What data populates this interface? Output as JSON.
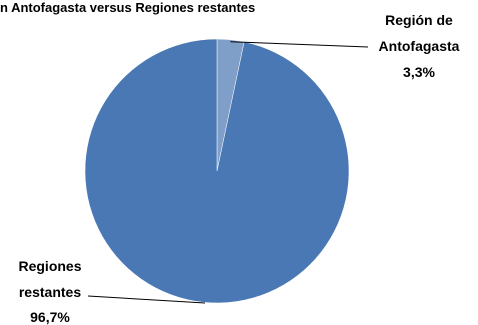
{
  "chart_data": {
    "type": "pie",
    "title": "n Antofagasta versus Regiones restantes",
    "slices": [
      {
        "label_lines": [
          "Región de",
          "Antofagasta"
        ],
        "value_label": "3,3%",
        "value": 3.3,
        "color": "#7f9ec8"
      },
      {
        "label_lines": [
          "Regiones",
          "restantes"
        ],
        "value_label": "96,7%",
        "value": 96.7,
        "color": "#4a78b4"
      }
    ],
    "legend": "none"
  }
}
